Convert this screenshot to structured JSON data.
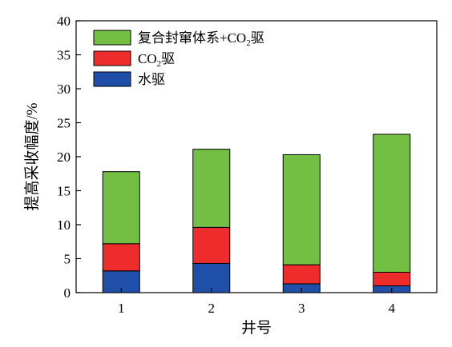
{
  "chart_data": {
    "type": "bar",
    "stacked": true,
    "categories": [
      "1",
      "2",
      "3",
      "4"
    ],
    "series": [
      {
        "name": "水驱",
        "values": [
          3.2,
          4.3,
          1.3,
          1.0
        ],
        "color": "#1f4fa8"
      },
      {
        "name": "CO2驱",
        "values": [
          4.0,
          5.3,
          2.8,
          2.0
        ],
        "color": "#ee2c2c"
      },
      {
        "name": "复合封窜体系+CO2驱",
        "values": [
          10.6,
          11.5,
          16.2,
          20.3
        ],
        "color": "#72bf44"
      }
    ],
    "totals": [
      17.8,
      21.1,
      20.3,
      23.3
    ],
    "xlabel": "井号",
    "ylabel": "提高采收幅度/%",
    "ylim": [
      0,
      40
    ],
    "yticks": [
      "0",
      "5",
      "10",
      "15",
      "20",
      "25",
      "30",
      "35",
      "40"
    ],
    "legend_position": "top-left",
    "grid": false
  }
}
